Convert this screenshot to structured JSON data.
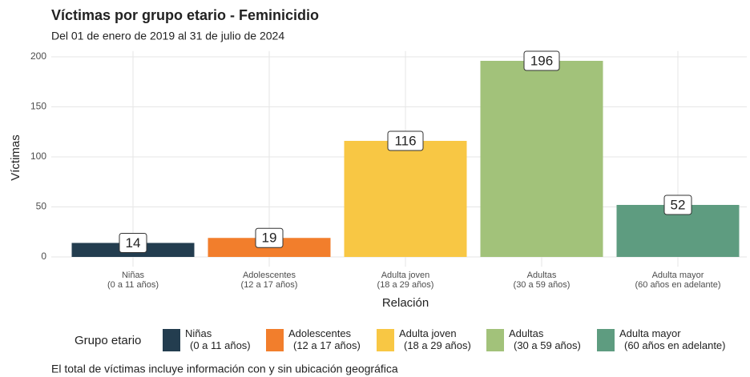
{
  "chart_data": {
    "type": "bar",
    "title": "Víctimas por grupo etario - Feminicidio",
    "subtitle": "Del 01 de enero de 2019 al 31 de julio de 2024",
    "x_label": "Relación",
    "y_label": "Víctimas",
    "legend_title": "Grupo etario",
    "caption": "El total de víctimas incluye información con y sin ubicación geográfica",
    "categories": [
      "Niñas\n(0 a 11 años)",
      "Adolescentes\n(12 a 17 años)",
      "Adulta joven\n(18 a 29 años)",
      "Adultas\n(30 a 59 años)",
      "Adulta mayor\n(60 años en adelante)"
    ],
    "values": [
      14,
      19,
      116,
      196,
      52
    ],
    "colors": [
      "#233d4f",
      "#f27e2c",
      "#f8c744",
      "#a2c27a",
      "#5e9c80"
    ],
    "ylim": [
      -9.8,
      205.8
    ],
    "yticks": [
      0,
      50,
      100,
      150,
      200
    ],
    "grid": true
  }
}
